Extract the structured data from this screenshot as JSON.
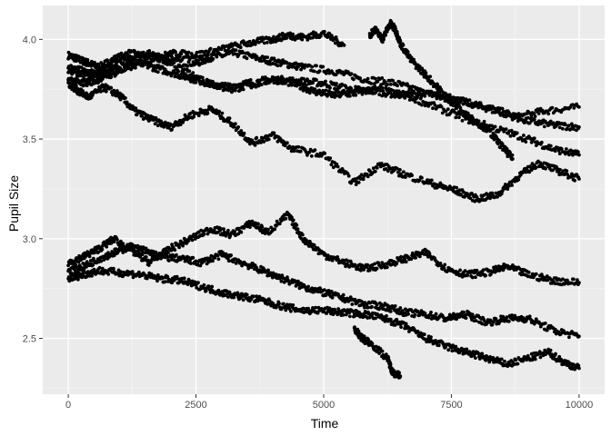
{
  "chart_data": {
    "type": "scatter",
    "xlabel": "Time",
    "ylabel": "Pupil Size",
    "xlim": [
      -500,
      10500
    ],
    "ylim": [
      2.22,
      4.17
    ],
    "x_ticks": [
      0,
      2500,
      5000,
      7500,
      10000
    ],
    "x_tick_labels": [
      "0",
      "2500",
      "5000",
      "7500",
      "10000"
    ],
    "y_ticks": [
      2.5,
      3.0,
      3.5,
      4.0
    ],
    "y_tick_labels": [
      "2.5",
      "3.0",
      "3.5",
      "4.0"
    ],
    "grid": true,
    "legend": "none",
    "colors": {
      "panel": "#ebebeb",
      "grid_major": "#ffffff",
      "grid_minor": "#f5f5f5",
      "point": "#000000"
    },
    "series": [
      {
        "x": [
          0,
          200,
          400,
          600,
          900,
          1200,
          1600,
          2000,
          2500,
          2800,
          3300,
          3800,
          4200,
          4600,
          5200,
          5800,
          6400,
          7000,
          7600,
          8200,
          8800,
          9300,
          10000
        ],
        "y": [
          3.92,
          3.9,
          3.88,
          3.86,
          3.9,
          3.93,
          3.91,
          3.89,
          3.88,
          3.91,
          3.93,
          3.9,
          3.88,
          3.86,
          3.84,
          3.8,
          3.78,
          3.73,
          3.7,
          3.66,
          3.61,
          3.64,
          3.66
        ]
      },
      {
        "x": [
          0,
          300,
          600,
          1000,
          1400,
          1800,
          2200,
          2600,
          3000,
          3500,
          4000,
          4500,
          5000,
          5500,
          6000,
          6500,
          7000,
          7500,
          8000,
          8500,
          9000,
          9500,
          10000
        ],
        "y": [
          3.86,
          3.84,
          3.82,
          3.85,
          3.88,
          3.85,
          3.82,
          3.79,
          3.76,
          3.78,
          3.8,
          3.79,
          3.78,
          3.75,
          3.74,
          3.72,
          3.73,
          3.7,
          3.67,
          3.63,
          3.59,
          3.57,
          3.56
        ]
      },
      {
        "x": [
          0,
          400,
          800,
          1200,
          1600,
          2000,
          2400,
          2800,
          3200,
          3600,
          4000,
          4400,
          4800,
          5200,
          5600,
          6000,
          6600,
          7200,
          7800,
          8400,
          9000,
          9500,
          10000
        ],
        "y": [
          3.84,
          3.82,
          3.86,
          3.9,
          3.93,
          3.88,
          3.82,
          3.78,
          3.75,
          3.77,
          3.8,
          3.78,
          3.74,
          3.72,
          3.73,
          3.75,
          3.72,
          3.66,
          3.6,
          3.55,
          3.5,
          3.45,
          3.42
        ]
      },
      {
        "x": [
          0,
          250,
          500,
          900,
          1300,
          1700,
          2100,
          2500,
          3000,
          3500,
          4000,
          4300,
          4600,
          5000,
          5400
        ],
        "y": [
          3.8,
          3.78,
          3.79,
          3.83,
          3.87,
          3.91,
          3.93,
          3.92,
          3.95,
          3.98,
          4.0,
          4.02,
          4.01,
          4.03,
          3.97
        ]
      },
      {
        "x": [
          0,
          200,
          400,
          700,
          1000,
          1300,
          1600,
          2000,
          2400,
          2800,
          3200,
          3600,
          4000,
          4400,
          5000,
          5600,
          6100,
          6600,
          7200,
          7600,
          8000,
          8400,
          8800,
          9200,
          9600,
          10000
        ],
        "y": [
          3.78,
          3.74,
          3.71,
          3.76,
          3.72,
          3.64,
          3.6,
          3.56,
          3.62,
          3.65,
          3.58,
          3.48,
          3.52,
          3.45,
          3.42,
          3.28,
          3.37,
          3.32,
          3.27,
          3.24,
          3.2,
          3.22,
          3.31,
          3.38,
          3.34,
          3.3
        ]
      },
      {
        "x": [
          5900,
          6000,
          6150,
          6300,
          6400,
          6500,
          6700,
          7000,
          7300,
          7600,
          7900,
          8200,
          8500,
          8700
        ],
        "y": [
          4.02,
          4.05,
          4.0,
          4.08,
          4.05,
          3.98,
          3.9,
          3.82,
          3.74,
          3.66,
          3.6,
          3.55,
          3.46,
          3.4
        ]
      },
      {
        "x": [
          0,
          300,
          600,
          900,
          1300,
          1600,
          2000,
          2400,
          2800,
          3200,
          3600,
          3900,
          4300,
          4600,
          5000,
          5400,
          5800,
          6200,
          6600,
          7000,
          7400,
          7800,
          8200,
          8600,
          9000,
          9500,
          10000
        ],
        "y": [
          2.88,
          2.91,
          2.95,
          3.0,
          2.93,
          2.88,
          2.95,
          3.0,
          3.05,
          3.02,
          3.08,
          3.03,
          3.12,
          3.0,
          2.92,
          2.88,
          2.85,
          2.87,
          2.9,
          2.93,
          2.85,
          2.82,
          2.83,
          2.86,
          2.82,
          2.79,
          2.78
        ]
      },
      {
        "x": [
          0,
          300,
          600,
          900,
          1200,
          1500,
          1800,
          2200,
          2600,
          3000,
          3400,
          3800,
          4200,
          4600,
          5000,
          5400,
          5800,
          6200,
          6600,
          7000,
          7400,
          7800,
          8200,
          8600,
          9000,
          9500,
          10000
        ],
        "y": [
          2.84,
          2.86,
          2.9,
          2.93,
          2.96,
          2.94,
          2.91,
          2.9,
          2.88,
          2.92,
          2.88,
          2.84,
          2.8,
          2.76,
          2.73,
          2.7,
          2.67,
          2.66,
          2.63,
          2.62,
          2.6,
          2.62,
          2.58,
          2.6,
          2.6,
          2.54,
          2.51
        ]
      },
      {
        "x": [
          0,
          300,
          600,
          1000,
          1400,
          1800,
          2200,
          2600,
          3000,
          3400,
          3800,
          4200,
          4600,
          5000,
          5400,
          5800,
          6200,
          6600,
          7000,
          7400,
          7800,
          8200,
          8600,
          9000,
          9400,
          9700,
          10000
        ],
        "y": [
          2.8,
          2.82,
          2.84,
          2.83,
          2.82,
          2.8,
          2.79,
          2.76,
          2.73,
          2.71,
          2.69,
          2.66,
          2.64,
          2.64,
          2.63,
          2.62,
          2.6,
          2.56,
          2.5,
          2.46,
          2.43,
          2.4,
          2.37,
          2.4,
          2.43,
          2.38,
          2.35
        ]
      },
      {
        "x": [
          5600,
          5750,
          5900,
          6250,
          6350,
          6500
        ],
        "y": [
          2.55,
          2.5,
          2.48,
          2.4,
          2.33,
          2.31
        ]
      }
    ]
  }
}
